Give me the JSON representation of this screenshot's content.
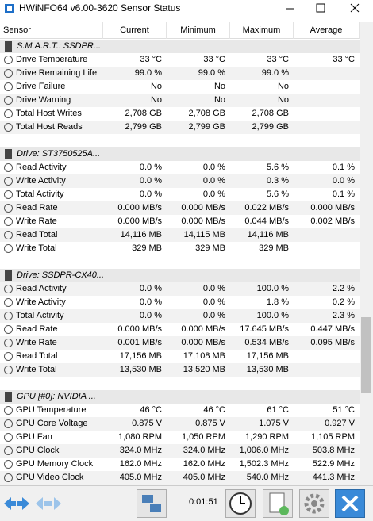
{
  "title": "HWiNFO64 v6.00-3620 Sensor Status",
  "table": {
    "columns": [
      "Sensor",
      "Current",
      "Minimum",
      "Maximum",
      "Average"
    ],
    "sections": [
      {
        "name": "S.M.A.R.T.: SSDPR...",
        "rows": [
          [
            "Drive Temperature",
            "33 °C",
            "33 °C",
            "33 °C",
            "33 °C"
          ],
          [
            "Drive Remaining Life",
            "99.0 %",
            "99.0 %",
            "99.0 %"
          ],
          [
            "Drive Failure",
            "No",
            "No",
            "No"
          ],
          [
            "Drive Warning",
            "No",
            "No",
            "No"
          ],
          [
            "Total Host Writes",
            "2,708 GB",
            "2,708 GB",
            "2,708 GB"
          ],
          [
            "Total Host Reads",
            "2,799 GB",
            "2,799 GB",
            "2,799 GB"
          ]
        ]
      },
      {
        "name": "Drive: ST3750525A...",
        "rows": [
          [
            "Read Activity",
            "0.0 %",
            "0.0 %",
            "5.6 %",
            "0.1 %"
          ],
          [
            "Write Activity",
            "0.0 %",
            "0.0 %",
            "0.3 %",
            "0.0 %"
          ],
          [
            "Total Activity",
            "0.0 %",
            "0.0 %",
            "5.6 %",
            "0.1 %"
          ],
          [
            "Read Rate",
            "0.000 MB/s",
            "0.000 MB/s",
            "0.022 MB/s",
            "0.000 MB/s"
          ],
          [
            "Write Rate",
            "0.000 MB/s",
            "0.000 MB/s",
            "0.044 MB/s",
            "0.002 MB/s"
          ],
          [
            "Read Total",
            "14,116 MB",
            "14,115 MB",
            "14,116 MB"
          ],
          [
            "Write Total",
            "329 MB",
            "329 MB",
            "329 MB"
          ]
        ]
      },
      {
        "name": "Drive: SSDPR-CX40...",
        "rows": [
          [
            "Read Activity",
            "0.0 %",
            "0.0 %",
            "100.0 %",
            "2.2 %"
          ],
          [
            "Write Activity",
            "0.0 %",
            "0.0 %",
            "1.8 %",
            "0.2 %"
          ],
          [
            "Total Activity",
            "0.0 %",
            "0.0 %",
            "100.0 %",
            "2.3 %"
          ],
          [
            "Read Rate",
            "0.000 MB/s",
            "0.000 MB/s",
            "17.645 MB/s",
            "0.447 MB/s"
          ],
          [
            "Write Rate",
            "0.001 MB/s",
            "0.000 MB/s",
            "0.534 MB/s",
            "0.095 MB/s"
          ],
          [
            "Read Total",
            "17,156 MB",
            "17,108 MB",
            "17,156 MB"
          ],
          [
            "Write Total",
            "13,530 MB",
            "13,520 MB",
            "13,530 MB"
          ]
        ]
      },
      {
        "name": "GPU [#0]: NVIDIA ...",
        "rows": [
          [
            "GPU Temperature",
            "46 °C",
            "46 °C",
            "61 °C",
            "51 °C"
          ],
          [
            "GPU Core Voltage",
            "0.875 V",
            "0.875 V",
            "1.075 V",
            "0.927 V"
          ],
          [
            "GPU Fan",
            "1,080 RPM",
            "1,050 RPM",
            "1,290 RPM",
            "1,105 RPM"
          ],
          [
            "GPU Clock",
            "324.0 MHz",
            "324.0 MHz",
            "1,006.0 MHz",
            "503.8 MHz"
          ],
          [
            "GPU Memory Clock",
            "162.0 MHz",
            "162.0 MHz",
            "1,502.3 MHz",
            "522.9 MHz"
          ],
          [
            "GPU Video Clock",
            "405.0 MHz",
            "405.0 MHz",
            "540.0 MHz",
            "441.3 MHz"
          ]
        ]
      }
    ]
  },
  "footer": {
    "timer": "0:01:51"
  }
}
